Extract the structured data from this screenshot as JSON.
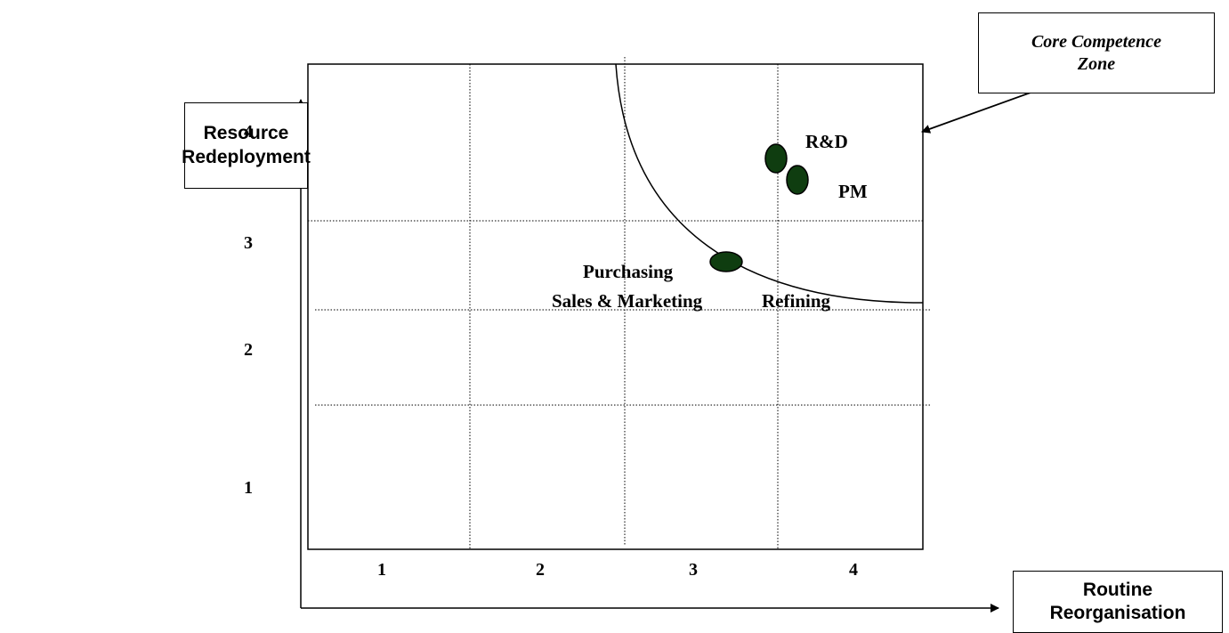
{
  "y_axis_title": [
    "Resource",
    "Redeployment"
  ],
  "x_axis_title": [
    "Routine",
    "Reorganisation"
  ],
  "zone_callout": [
    "Core Competence",
    "Zone"
  ],
  "x_ticks": [
    "1",
    "2",
    "3",
    "4"
  ],
  "y_ticks": [
    "4",
    "3",
    "2",
    "1"
  ],
  "items": [
    {
      "label": "R&D"
    },
    {
      "label": "PM"
    },
    {
      "label": "Purchasing"
    },
    {
      "label": "Sales & Marketing"
    },
    {
      "label": "Refining"
    }
  ],
  "colors": {
    "marker_fill": "#0f3d10",
    "line": "#000000"
  }
}
